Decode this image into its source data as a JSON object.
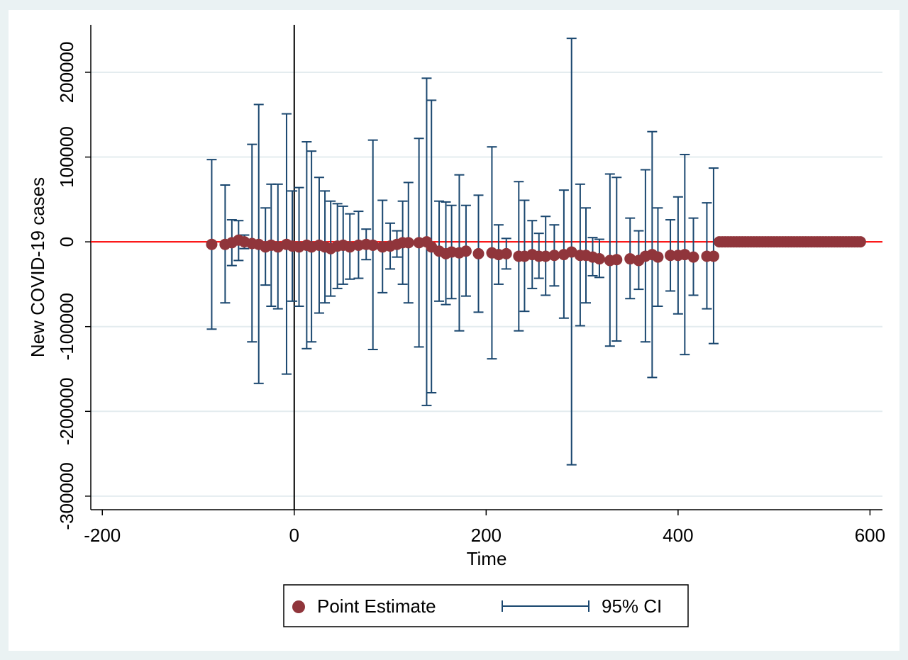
{
  "chart_data": {
    "type": "errorbar_scatter",
    "xlabel": "Time",
    "ylabel": "New COVID-19 cases",
    "xlim": [
      -212,
      613
    ],
    "ylim": [
      -316000,
      256000
    ],
    "xticks": [
      -200,
      0,
      200,
      400,
      600
    ],
    "yticks": [
      -300000,
      -200000,
      -100000,
      0,
      100000,
      200000
    ],
    "grid": true,
    "yline": {
      "value": 0,
      "color": "#ff0000"
    },
    "xline": {
      "value": 0,
      "color": "#000000"
    },
    "legend": "bottom",
    "series": [
      {
        "name": "Point Estimate",
        "color": "#90353b",
        "x": [
          -86,
          -72,
          -65,
          -58,
          -52,
          -44,
          -37,
          -30,
          -24,
          -17,
          -8,
          -2,
          5,
          13,
          18,
          26,
          32,
          38,
          45,
          51,
          58,
          67,
          75,
          82,
          92,
          100,
          107,
          113,
          119,
          130,
          138,
          143,
          151,
          158,
          164,
          172,
          179,
          192,
          206,
          213,
          221,
          234,
          240,
          248,
          255,
          262,
          271,
          281,
          289,
          298,
          304,
          311,
          318,
          329,
          336,
          350,
          359,
          366,
          373,
          379,
          392,
          400,
          407,
          416,
          430,
          437,
          443,
          446,
          449,
          452,
          455,
          458,
          461,
          464,
          467,
          470,
          473,
          476,
          479,
          482,
          485,
          488,
          491,
          494,
          497,
          500,
          503,
          506,
          509,
          512,
          515,
          518,
          521,
          524,
          527,
          530,
          533,
          536,
          539,
          542,
          545,
          548,
          551,
          554,
          557,
          560,
          563,
          566,
          569,
          572,
          575,
          578,
          581,
          584,
          587,
          590
        ],
        "values": [
          -3000,
          -3000,
          -1000,
          2000,
          0,
          -2000,
          -3000,
          -6000,
          -4000,
          -6000,
          -3000,
          -5000,
          -6000,
          -4000,
          -6000,
          -4000,
          -6000,
          -8000,
          -5000,
          -4000,
          -6000,
          -4000,
          -3000,
          -4000,
          -6000,
          -5000,
          -3000,
          -1000,
          -1000,
          -1000,
          0,
          -6000,
          -11000,
          -14000,
          -12000,
          -13000,
          -11000,
          -14000,
          -13000,
          -15000,
          -14000,
          -17000,
          -17000,
          -15000,
          -17000,
          -17000,
          -16000,
          -15000,
          -12000,
          -16000,
          -16000,
          -18000,
          -20000,
          -22000,
          -21000,
          -20000,
          -22000,
          -17000,
          -15000,
          -18000,
          -16000,
          -16000,
          -15000,
          -18000,
          -17000,
          -17000,
          0,
          0,
          0,
          0,
          0,
          0,
          0,
          0,
          0,
          0,
          0,
          0,
          0,
          0,
          0,
          0,
          0,
          0,
          0,
          0,
          0,
          0,
          0,
          0,
          0,
          0,
          0,
          0,
          0,
          0,
          0,
          0,
          0,
          0,
          0,
          0,
          0,
          0,
          0,
          0,
          0,
          0,
          0,
          0,
          0,
          0,
          0,
          0,
          0,
          0
        ]
      },
      {
        "name": "95% CI",
        "color": "#1a476f",
        "x": [
          -86,
          -72,
          -65,
          -58,
          -52,
          -44,
          -37,
          -30,
          -24,
          -17,
          -8,
          -2,
          5,
          13,
          18,
          26,
          32,
          38,
          45,
          51,
          58,
          67,
          75,
          82,
          92,
          100,
          107,
          113,
          119,
          130,
          138,
          143,
          151,
          158,
          164,
          172,
          179,
          192,
          206,
          213,
          221,
          234,
          240,
          248,
          255,
          262,
          271,
          281,
          289,
          298,
          304,
          311,
          318,
          329,
          336,
          350,
          359,
          366,
          373,
          379,
          392,
          400,
          407,
          416,
          430,
          437
        ],
        "low": [
          -103000,
          -72000,
          -28000,
          -22000,
          -8000,
          -118000,
          -167000,
          -51000,
          -76000,
          -79000,
          -156000,
          -70000,
          -76000,
          -126000,
          -118000,
          -84000,
          -72000,
          -64000,
          -55000,
          -50000,
          -44000,
          -43000,
          -21000,
          -127000,
          -60000,
          -32000,
          -18000,
          -50000,
          -72000,
          -124000,
          -193000,
          -178000,
          -70000,
          -74000,
          -67000,
          -105000,
          -64000,
          -83000,
          -138000,
          -50000,
          -32000,
          -105000,
          -82000,
          -55000,
          -43000,
          -63000,
          -52000,
          -90000,
          -263000,
          -99000,
          -72000,
          -40000,
          -42000,
          -123000,
          -117000,
          -67000,
          -56000,
          -118000,
          -160000,
          -76000,
          -58000,
          -85000,
          -133000,
          -63000,
          -79000,
          -120000
        ],
        "high": [
          97000,
          67000,
          26000,
          25000,
          8000,
          115000,
          162000,
          40000,
          68000,
          68000,
          151000,
          60000,
          64000,
          118000,
          107000,
          76000,
          60000,
          48000,
          45000,
          42000,
          33000,
          36000,
          15000,
          120000,
          49000,
          22000,
          13000,
          48000,
          70000,
          122000,
          193000,
          167000,
          48000,
          47000,
          43000,
          79000,
          43000,
          55000,
          112000,
          20000,
          4000,
          71000,
          49000,
          25000,
          10000,
          30000,
          20000,
          61000,
          240000,
          68000,
          40000,
          5000,
          3000,
          80000,
          76000,
          28000,
          13000,
          85000,
          130000,
          40000,
          26000,
          53000,
          103000,
          28000,
          46000,
          87000
        ]
      }
    ]
  }
}
